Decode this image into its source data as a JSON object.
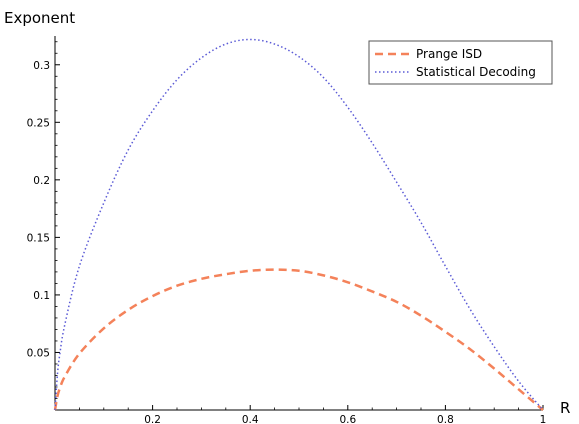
{
  "chart_data": {
    "type": "line",
    "xlabel": "R",
    "ylabel": "Exponent",
    "xlim": [
      0,
      1
    ],
    "ylim": [
      0,
      0.325
    ],
    "x_ticks": [
      0.2,
      0.4,
      0.6,
      0.8,
      1
    ],
    "x_tick_labels": [
      "0.2",
      "0.4",
      "0.6",
      "0.8",
      "1"
    ],
    "y_ticks": [
      0.05,
      0.1,
      0.15,
      0.2,
      0.25,
      0.3
    ],
    "y_tick_labels": [
      "0.05",
      "0.1",
      "0.15",
      "0.2",
      "0.25",
      "0.3"
    ],
    "grid": false,
    "legend_position": "top-right",
    "series": [
      {
        "name": "Prange ISD",
        "color": "#f4825a",
        "style": "dashed",
        "x": [
          0,
          0.005,
          0.01,
          0.02,
          0.05,
          0.1,
          0.15,
          0.2,
          0.25,
          0.3,
          0.35,
          0.4,
          0.45,
          0.5,
          0.55,
          0.6,
          0.65,
          0.7,
          0.75,
          0.8,
          0.85,
          0.9,
          0.95,
          1
        ],
        "y": [
          0,
          0.012,
          0.019,
          0.029,
          0.049,
          0.071,
          0.087,
          0.099,
          0.108,
          0.114,
          0.118,
          0.121,
          0.122,
          0.121,
          0.117,
          0.111,
          0.103,
          0.094,
          0.082,
          0.068,
          0.053,
          0.036,
          0.018,
          0
        ]
      },
      {
        "name": "Statistical Decoding",
        "color": "#5b5bd6",
        "style": "dotted",
        "x": [
          0,
          0.005,
          0.01,
          0.02,
          0.05,
          0.1,
          0.15,
          0.2,
          0.25,
          0.3,
          0.35,
          0.4,
          0.45,
          0.5,
          0.55,
          0.6,
          0.65,
          0.7,
          0.75,
          0.8,
          0.85,
          0.9,
          0.95,
          1
        ],
        "y": [
          0,
          0.031,
          0.049,
          0.074,
          0.125,
          0.18,
          0.226,
          0.26,
          0.287,
          0.306,
          0.318,
          0.322,
          0.318,
          0.307,
          0.289,
          0.263,
          0.232,
          0.198,
          0.163,
          0.125,
          0.088,
          0.055,
          0.025,
          0
        ]
      }
    ]
  }
}
